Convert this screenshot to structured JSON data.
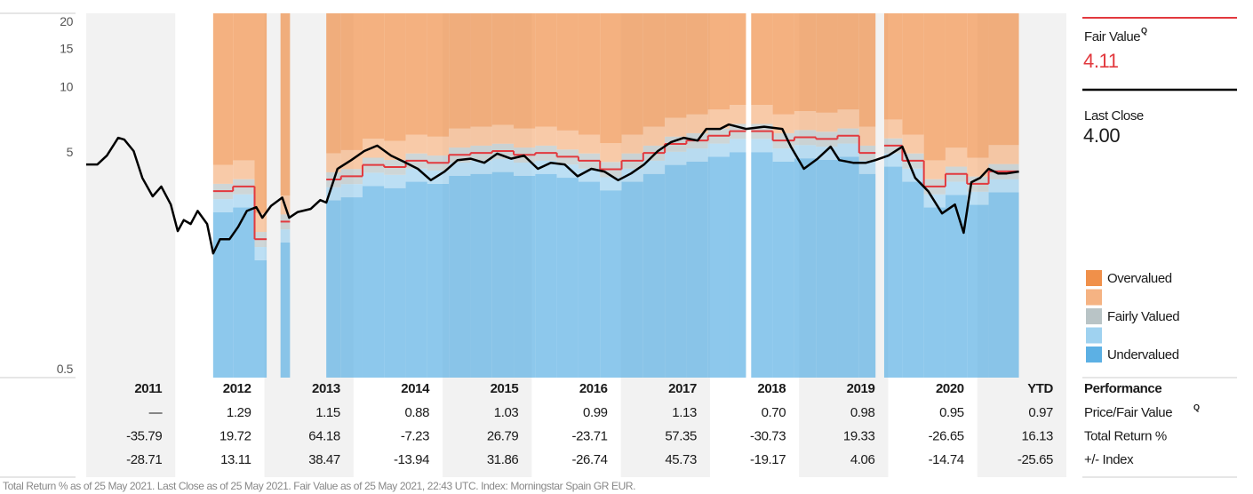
{
  "chart_data": {
    "type": "valuation",
    "log_scale": true,
    "ylim": [
      0.46,
      22
    ],
    "yticks": [
      0.5,
      5,
      10,
      15,
      20
    ],
    "xlim": [
      2010.55,
      2021.9
    ],
    "bands": {
      "edges": [
        2012.02,
        2012.25,
        2012.5,
        2012.64,
        2012.8,
        2012.91,
        2013.33,
        2013.5,
        2013.75,
        2014,
        2014.25,
        2014.5,
        2014.75,
        2015,
        2015.25,
        2015.5,
        2015.75,
        2016,
        2016.25,
        2016.5,
        2016.75,
        2017,
        2017.25,
        2017.5,
        2017.75,
        2018,
        2018.19,
        2018.25,
        2018.5,
        2018.75,
        2019,
        2019.25,
        2019.5,
        2019.69,
        2019.79,
        2020,
        2020.25,
        2020.5,
        2020.75,
        2021,
        2021.35
      ],
      "levels": [
        [
          2.66,
          2.8,
          1.6,
          null,
          1.93,
          null,
          3.02,
          3.12,
          3.52,
          3.44,
          3.68,
          3.6,
          3.92,
          4.0,
          4.08,
          3.92,
          4.0,
          3.84,
          3.68,
          3.36,
          3.68,
          4.0,
          4.4,
          4.56,
          4.8,
          5.04,
          null,
          5.04,
          4.56,
          4.72,
          4.64,
          4.8,
          4.0,
          null,
          4.32,
          3.68,
          2.8,
          3.2,
          2.88,
          3.29
        ],
        [
          3.06,
          3.22,
          1.84,
          null,
          2.22,
          null,
          3.47,
          3.59,
          4.05,
          3.96,
          4.23,
          4.14,
          4.51,
          4.6,
          4.69,
          4.51,
          4.6,
          4.42,
          4.23,
          3.86,
          4.23,
          4.6,
          5.06,
          5.24,
          5.52,
          5.8,
          null,
          5.8,
          5.24,
          5.43,
          5.34,
          5.52,
          4.6,
          null,
          4.97,
          4.23,
          3.22,
          3.68,
          3.31,
          3.78
        ],
        [
          3.6,
          3.78,
          2.16,
          null,
          2.6,
          null,
          4.07,
          4.21,
          4.75,
          4.64,
          4.97,
          4.86,
          5.29,
          5.4,
          5.51,
          5.29,
          5.4,
          5.18,
          4.97,
          4.54,
          4.97,
          5.4,
          5.94,
          6.16,
          6.48,
          6.8,
          null,
          6.8,
          6.16,
          6.37,
          6.26,
          6.48,
          5.4,
          null,
          5.83,
          4.97,
          3.78,
          4.32,
          3.89,
          4.44
        ],
        [
          4.4,
          4.62,
          2.64,
          null,
          3.18,
          null,
          4.98,
          5.15,
          5.81,
          5.68,
          6.07,
          5.94,
          6.47,
          6.6,
          6.73,
          6.47,
          6.6,
          6.34,
          6.07,
          5.54,
          6.07,
          6.6,
          7.26,
          7.52,
          7.92,
          8.32,
          null,
          8.32,
          7.52,
          7.79,
          7.66,
          7.92,
          6.6,
          null,
          7.13,
          6.07,
          4.62,
          5.28,
          4.75,
          5.43
        ]
      ]
    },
    "fair_value": {
      "name": "Fair Value",
      "color": "#e2393e",
      "values": [
        3.33,
        3.5,
        2.0,
        null,
        2.41,
        null,
        3.77,
        3.9,
        4.4,
        4.3,
        4.6,
        4.5,
        4.9,
        5.0,
        5.1,
        4.9,
        5.0,
        4.8,
        4.6,
        4.2,
        4.6,
        5.0,
        5.5,
        5.7,
        6.0,
        6.3,
        null,
        6.3,
        5.7,
        5.9,
        5.8,
        6.0,
        5.0,
        null,
        5.4,
        4.6,
        3.5,
        4.0,
        3.6,
        4.11
      ]
    },
    "price": {
      "name": "Last Close",
      "color": "#000000",
      "x": [
        2010.55,
        2010.68,
        2010.79,
        2010.92,
        2010.99,
        2011.1,
        2011.2,
        2011.32,
        2011.42,
        2011.53,
        2011.61,
        2011.68,
        2011.76,
        2011.84,
        2011.95,
        2012.02,
        2012.1,
        2012.21,
        2012.31,
        2012.41,
        2012.52,
        2012.59,
        2012.69,
        2012.82,
        2012.9,
        2013.0,
        2013.15,
        2013.26,
        2013.33,
        2013.46,
        2013.62,
        2013.77,
        2013.92,
        2014.08,
        2014.23,
        2014.39,
        2014.54,
        2014.7,
        2014.85,
        2015.0,
        2015.16,
        2015.31,
        2015.47,
        2015.62,
        2015.78,
        2015.93,
        2016.09,
        2016.24,
        2016.4,
        2016.55,
        2016.71,
        2016.86,
        2017.01,
        2017.17,
        2017.32,
        2017.47,
        2017.63,
        2017.73,
        2017.89,
        2017.99,
        2018.19,
        2018.4,
        2018.61,
        2018.71,
        2018.86,
        2019.02,
        2019.17,
        2019.27,
        2019.43,
        2019.58,
        2019.69,
        2019.84,
        2020.0,
        2020.15,
        2020.3,
        2020.46,
        2020.61,
        2020.71,
        2020.8,
        2020.9,
        2021.0,
        2021.11,
        2021.21,
        2021.35
      ],
      "values": [
        4.42,
        4.42,
        4.86,
        5.87,
        5.76,
        5.1,
        3.83,
        3.15,
        3.5,
        2.89,
        2.18,
        2.45,
        2.35,
        2.7,
        2.35,
        1.72,
        2.0,
        2.0,
        2.28,
        2.7,
        2.81,
        2.51,
        2.85,
        3.11,
        2.51,
        2.67,
        2.76,
        3.03,
        2.95,
        4.22,
        4.63,
        5.1,
        5.4,
        4.86,
        4.55,
        4.22,
        3.74,
        4.1,
        4.63,
        4.7,
        4.5,
        4.96,
        4.7,
        4.86,
        4.22,
        4.5,
        4.42,
        3.9,
        4.22,
        4.1,
        3.74,
        4.02,
        4.42,
        5.1,
        5.6,
        5.87,
        5.7,
        6.45,
        6.45,
        6.76,
        6.45,
        6.6,
        6.45,
        5.34,
        4.22,
        4.7,
        5.34,
        4.63,
        4.5,
        4.5,
        4.63,
        4.86,
        5.34,
        3.83,
        3.33,
        2.63,
        2.89,
        2.14,
        3.66,
        3.83,
        4.22,
        4.02,
        4.02,
        4.1
      ]
    },
    "legend": [
      {
        "label": "Overvalued",
        "color": "#f0904a"
      },
      {
        "label": null,
        "color": "#f5b383"
      },
      {
        "label": "Fairly Valued",
        "color": "#b9c4c6"
      },
      {
        "label": null,
        "color": "#9fd2f0"
      },
      {
        "label": "Undervalued",
        "color": "#5cb0e4"
      }
    ]
  },
  "summary": {
    "fair_value_label": "Fair Value",
    "badge": "Q",
    "fair_value": "4.11",
    "last_close_label": "Last Close",
    "last_close": "4.00"
  },
  "table": {
    "title": "Performance",
    "header": [
      "2011",
      "2012",
      "2013",
      "2014",
      "2015",
      "2016",
      "2017",
      "2018",
      "2019",
      "2020",
      "YTD"
    ],
    "rows": [
      {
        "label": "Price/Fair Value",
        "cells": [
          "—",
          "1.29",
          "1.15",
          "0.88",
          "1.03",
          "0.99",
          "1.13",
          "0.70",
          "0.98",
          "0.95",
          "0.97"
        ]
      },
      {
        "label": "Total Return %",
        "cells": [
          "-35.79",
          "19.72",
          "64.18",
          "-7.23",
          "26.79",
          "-23.71",
          "57.35",
          "-30.73",
          "19.33",
          "-26.65",
          "16.13"
        ]
      },
      {
        "label": "+/- Index",
        "cells": [
          "-28.71",
          "13.11",
          "38.47",
          "-13.94",
          "31.86",
          "-26.74",
          "45.73",
          "-19.17",
          "4.06",
          "-14.74",
          "-25.65"
        ]
      }
    ]
  },
  "footnote": "Total Return % as of 25 May 2021. Last Close as of 25 May 2021. Fair Value as of 25 May 2021, 22:43 UTC. Index: Morningstar Spain GR EUR."
}
